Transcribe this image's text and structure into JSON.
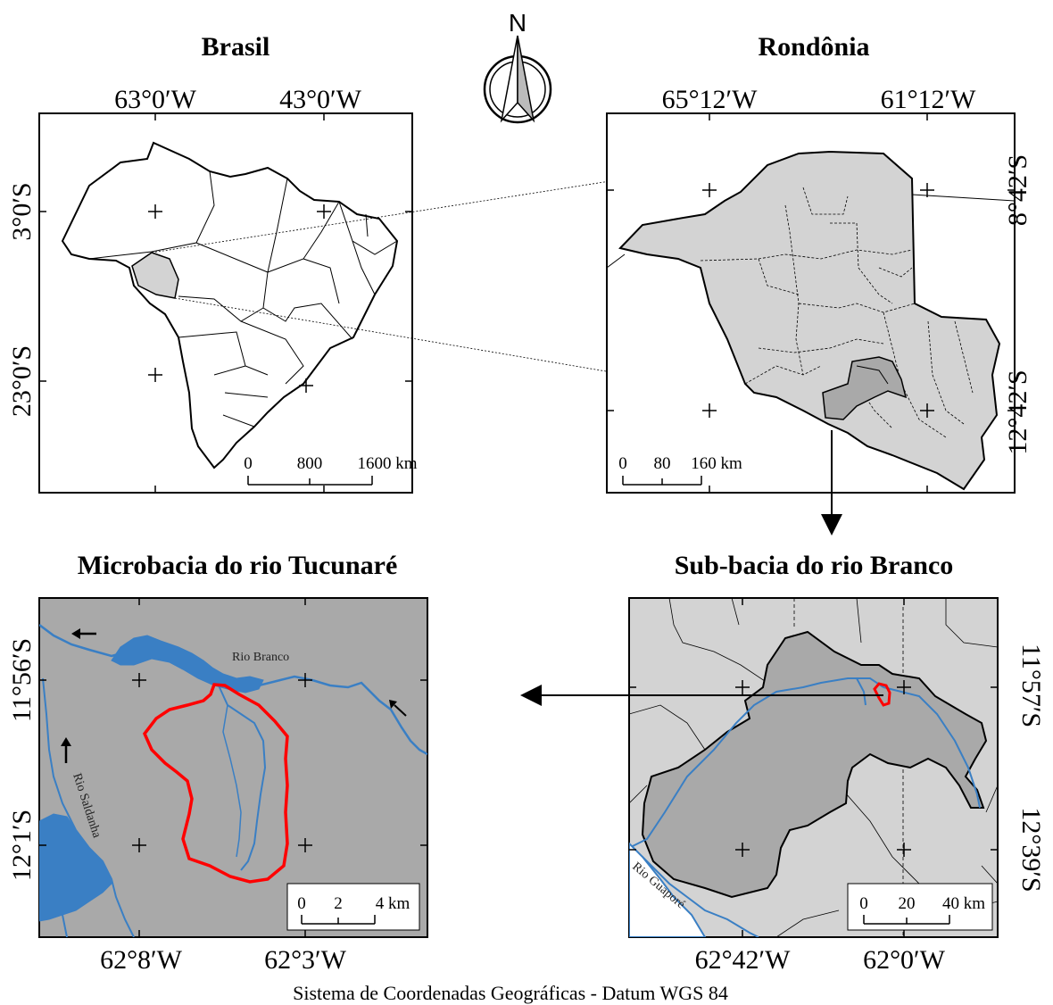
{
  "colors": {
    "frame": "#000000",
    "brazil_fill": "#ffffff",
    "rondonia_fill": "#d3d3d3",
    "subbasin_fill": "#a9a9a9",
    "subbasin_bg": "#d3d3d3",
    "micro_bg": "#a9a9a9",
    "river": "#3a7fc4",
    "watershed_outline": "#ff0000"
  },
  "north_arrow": {
    "label": "N",
    "icon": "north-arrow-icon"
  },
  "panels": {
    "brasil": {
      "title": "Brasil",
      "lon_labels": [
        "63°0′W",
        "43°0′W"
      ],
      "lat_labels": [
        "3°0′S",
        "23°0′S"
      ],
      "scale": {
        "labels": [
          "0",
          "800",
          "1600 km"
        ]
      }
    },
    "rondonia": {
      "title": "Rondônia",
      "lon_labels": [
        "65°12′W",
        "61°12′W"
      ],
      "lat_labels": [
        "8°42′S",
        "12°42′S"
      ],
      "scale": {
        "labels": [
          "0",
          "80",
          "160 km"
        ]
      }
    },
    "subbacia": {
      "title": "Sub-bacia do rio Branco",
      "lon_labels": [
        "62°42′W",
        "62°0′W"
      ],
      "lat_labels": [
        "11°57′S",
        "12°39′S"
      ],
      "river_label": "Rio Guaporé",
      "scale": {
        "labels": [
          "0",
          "20",
          "40 km"
        ]
      }
    },
    "microbacia": {
      "title": "Microbacia do rio Tucunaré",
      "lon_labels": [
        "62°8′W",
        "62°3′W"
      ],
      "lat_labels": [
        "11°56′S",
        "12°1′S"
      ],
      "river_labels": [
        "Rio Branco",
        "Rio Saldanha"
      ],
      "scale": {
        "labels": [
          "0",
          "2",
          "4 km"
        ]
      }
    }
  },
  "footer": "Sistema de Coordenadas Geográficas - Datum WGS 84"
}
